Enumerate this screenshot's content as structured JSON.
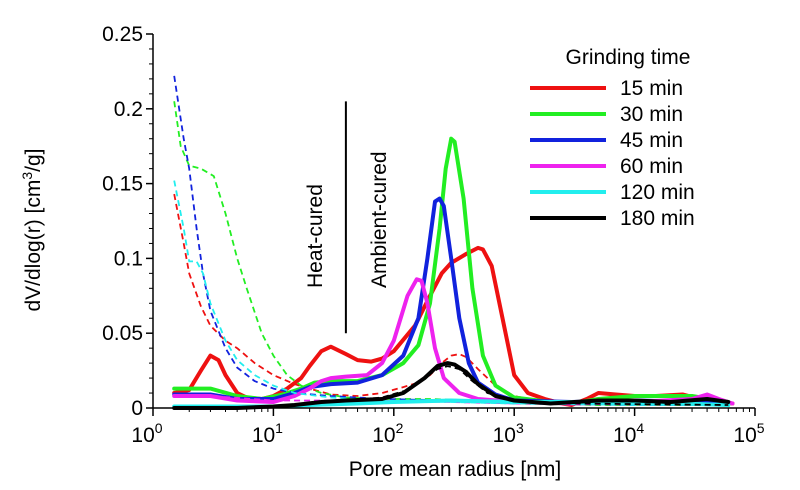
{
  "chart_data": {
    "type": "line",
    "xscale": "log",
    "xlim": [
      1,
      100000
    ],
    "ylim": [
      0,
      0.25
    ],
    "xticks": [
      {
        "value": 1,
        "base": "10",
        "exp": "0"
      },
      {
        "value": 10,
        "base": "10",
        "exp": "1"
      },
      {
        "value": 100,
        "base": "10",
        "exp": "2"
      },
      {
        "value": 1000,
        "base": "10",
        "exp": "3"
      },
      {
        "value": 10000,
        "base": "10",
        "exp": "4"
      },
      {
        "value": 100000,
        "base": "10",
        "exp": "5"
      }
    ],
    "yticks": [
      {
        "value": 0,
        "label": "0"
      },
      {
        "value": 0.05,
        "label": "0.05"
      },
      {
        "value": 0.1,
        "label": "0.1"
      },
      {
        "value": 0.15,
        "label": "0.15"
      },
      {
        "value": 0.2,
        "label": "0.2"
      },
      {
        "value": 0.25,
        "label": "0.25"
      }
    ],
    "xlabel": "Pore mean radius  [nm]",
    "ylabel_main": "dV/dlog(r) [cm",
    "ylabel_sup": "3",
    "ylabel_tail": "/g]",
    "legend": {
      "title": "Grinding time",
      "position": "top-right"
    },
    "annotations": {
      "heat_cured": "Heat-cured",
      "ambient_cured": "Ambient-cured",
      "divider_x": 40,
      "divider_y": [
        0.05,
        0.205
      ]
    },
    "series": [
      {
        "name": "15 min",
        "color": "#ee1111",
        "solid": [
          [
            1.5,
            0.01
          ],
          [
            2,
            0.012
          ],
          [
            2.5,
            0.025
          ],
          [
            3,
            0.035
          ],
          [
            3.5,
            0.032
          ],
          [
            4,
            0.022
          ],
          [
            5,
            0.01
          ],
          [
            6,
            0.007
          ],
          [
            8,
            0.006
          ],
          [
            10,
            0.008
          ],
          [
            13,
            0.013
          ],
          [
            17,
            0.02
          ],
          [
            20,
            0.028
          ],
          [
            25,
            0.038
          ],
          [
            30,
            0.041
          ],
          [
            40,
            0.036
          ],
          [
            50,
            0.032
          ],
          [
            65,
            0.031
          ],
          [
            80,
            0.033
          ],
          [
            100,
            0.038
          ],
          [
            150,
            0.055
          ],
          [
            200,
            0.075
          ],
          [
            250,
            0.09
          ],
          [
            300,
            0.097
          ],
          [
            400,
            0.103
          ],
          [
            500,
            0.107
          ],
          [
            550,
            0.106
          ],
          [
            650,
            0.095
          ],
          [
            800,
            0.06
          ],
          [
            1000,
            0.022
          ],
          [
            1300,
            0.01
          ],
          [
            1800,
            0.006
          ],
          [
            2500,
            0.003
          ],
          [
            3000,
            0.002
          ],
          [
            4000,
            0.006
          ],
          [
            5000,
            0.01
          ],
          [
            7000,
            0.009
          ],
          [
            10000,
            0.008
          ],
          [
            15000,
            0.008
          ],
          [
            25000,
            0.009
          ],
          [
            35000,
            0.006
          ],
          [
            50000,
            0.004
          ],
          [
            65000,
            0.003
          ]
        ],
        "dashed": [
          [
            1.5,
            0.143
          ],
          [
            1.8,
            0.11
          ],
          [
            2,
            0.09
          ],
          [
            2.5,
            0.068
          ],
          [
            3,
            0.055
          ],
          [
            4,
            0.045
          ],
          [
            5,
            0.04
          ],
          [
            7,
            0.03
          ],
          [
            10,
            0.022
          ],
          [
            15,
            0.016
          ],
          [
            20,
            0.013
          ],
          [
            30,
            0.009
          ],
          [
            50,
            0.008
          ],
          [
            80,
            0.01
          ],
          [
            120,
            0.014
          ],
          [
            160,
            0.017
          ],
          [
            200,
            0.022
          ],
          [
            250,
            0.03
          ],
          [
            300,
            0.035
          ],
          [
            350,
            0.036
          ],
          [
            400,
            0.034
          ],
          [
            500,
            0.026
          ],
          [
            700,
            0.015
          ],
          [
            1000,
            0.008
          ],
          [
            2000,
            0.003
          ],
          [
            5000,
            0.002
          ],
          [
            20000,
            0.002
          ],
          [
            60000,
            0.002
          ]
        ]
      },
      {
        "name": "30 min",
        "color": "#22ee22",
        "solid": [
          [
            1.5,
            0.013
          ],
          [
            3,
            0.013
          ],
          [
            5,
            0.008
          ],
          [
            8,
            0.006
          ],
          [
            12,
            0.009
          ],
          [
            17,
            0.013
          ],
          [
            22,
            0.017
          ],
          [
            30,
            0.018
          ],
          [
            50,
            0.018
          ],
          [
            80,
            0.022
          ],
          [
            120,
            0.03
          ],
          [
            160,
            0.042
          ],
          [
            200,
            0.07
          ],
          [
            240,
            0.12
          ],
          [
            270,
            0.16
          ],
          [
            300,
            0.18
          ],
          [
            320,
            0.178
          ],
          [
            380,
            0.14
          ],
          [
            450,
            0.08
          ],
          [
            550,
            0.035
          ],
          [
            700,
            0.015
          ],
          [
            1000,
            0.007
          ],
          [
            2000,
            0.004
          ],
          [
            3000,
            0.003
          ],
          [
            5000,
            0.006
          ],
          [
            10000,
            0.008
          ],
          [
            30000,
            0.008
          ],
          [
            60000,
            0.004
          ]
        ],
        "dashed": [
          [
            1.5,
            0.205
          ],
          [
            1.7,
            0.175
          ],
          [
            2,
            0.162
          ],
          [
            2.5,
            0.16
          ],
          [
            3.2,
            0.155
          ],
          [
            4,
            0.13
          ],
          [
            5,
            0.1
          ],
          [
            6,
            0.08
          ],
          [
            8,
            0.05
          ],
          [
            10,
            0.035
          ],
          [
            13,
            0.022
          ],
          [
            17,
            0.015
          ],
          [
            25,
            0.01
          ],
          [
            40,
            0.007
          ],
          [
            80,
            0.006
          ],
          [
            200,
            0.006
          ],
          [
            500,
            0.005
          ],
          [
            1000,
            0.003
          ],
          [
            5000,
            0.002
          ],
          [
            60000,
            0.002
          ]
        ]
      },
      {
        "name": "45 min",
        "color": "#1122dd",
        "solid": [
          [
            1.5,
            0.009
          ],
          [
            3,
            0.009
          ],
          [
            5,
            0.006
          ],
          [
            10,
            0.006
          ],
          [
            15,
            0.01
          ],
          [
            20,
            0.014
          ],
          [
            30,
            0.016
          ],
          [
            50,
            0.017
          ],
          [
            80,
            0.022
          ],
          [
            120,
            0.035
          ],
          [
            160,
            0.06
          ],
          [
            190,
            0.1
          ],
          [
            220,
            0.138
          ],
          [
            240,
            0.14
          ],
          [
            260,
            0.135
          ],
          [
            300,
            0.1
          ],
          [
            350,
            0.06
          ],
          [
            420,
            0.03
          ],
          [
            500,
            0.017
          ],
          [
            700,
            0.009
          ],
          [
            1000,
            0.005
          ],
          [
            3000,
            0.004
          ],
          [
            10000,
            0.005
          ],
          [
            40000,
            0.004
          ],
          [
            60000,
            0.003
          ]
        ],
        "dashed": [
          [
            1.5,
            0.222
          ],
          [
            1.8,
            0.18
          ],
          [
            2,
            0.16
          ],
          [
            2.3,
            0.12
          ],
          [
            2.6,
            0.09
          ],
          [
            3,
            0.065
          ],
          [
            4,
            0.04
          ],
          [
            5,
            0.027
          ],
          [
            7,
            0.018
          ],
          [
            10,
            0.013
          ],
          [
            15,
            0.01
          ],
          [
            30,
            0.008
          ],
          [
            80,
            0.006
          ],
          [
            300,
            0.005
          ],
          [
            1000,
            0.003
          ],
          [
            10000,
            0.002
          ],
          [
            60000,
            0.002
          ]
        ]
      },
      {
        "name": "60 min",
        "color": "#ee22ee",
        "solid": [
          [
            1.5,
            0.008
          ],
          [
            3,
            0.008
          ],
          [
            5,
            0.005
          ],
          [
            10,
            0.004
          ],
          [
            15,
            0.008
          ],
          [
            20,
            0.013
          ],
          [
            25,
            0.018
          ],
          [
            30,
            0.02
          ],
          [
            40,
            0.021
          ],
          [
            60,
            0.022
          ],
          [
            80,
            0.03
          ],
          [
            100,
            0.045
          ],
          [
            130,
            0.075
          ],
          [
            155,
            0.086
          ],
          [
            170,
            0.085
          ],
          [
            190,
            0.07
          ],
          [
            220,
            0.04
          ],
          [
            260,
            0.02
          ],
          [
            350,
            0.01
          ],
          [
            500,
            0.006
          ],
          [
            1000,
            0.004
          ],
          [
            3000,
            0.003
          ],
          [
            10000,
            0.004
          ],
          [
            30000,
            0.006
          ],
          [
            40000,
            0.009
          ],
          [
            50000,
            0.006
          ],
          [
            65000,
            0.003
          ]
        ],
        "dashed": [
          [
            1.5,
            0.008
          ],
          [
            3,
            0.008
          ],
          [
            10,
            0.005
          ],
          [
            50,
            0.005
          ],
          [
            300,
            0.004
          ],
          [
            1000,
            0.003
          ],
          [
            60000,
            0.002
          ]
        ]
      },
      {
        "name": "120 min",
        "color": "#22eeee",
        "solid": [
          [
            1.5,
            0.001
          ],
          [
            10,
            0.001
          ],
          [
            20,
            0.002
          ],
          [
            50,
            0.003
          ],
          [
            100,
            0.004
          ],
          [
            300,
            0.005
          ],
          [
            1000,
            0.004
          ],
          [
            10000,
            0.004
          ],
          [
            60000,
            0.002
          ]
        ],
        "dashed": [
          [
            1.5,
            0.152
          ],
          [
            1.8,
            0.12
          ],
          [
            2,
            0.098
          ],
          [
            2.3,
            0.098
          ],
          [
            2.6,
            0.09
          ],
          [
            3,
            0.07
          ],
          [
            4,
            0.045
          ],
          [
            5,
            0.032
          ],
          [
            7,
            0.022
          ],
          [
            10,
            0.015
          ],
          [
            15,
            0.01
          ],
          [
            30,
            0.007
          ],
          [
            80,
            0.005
          ],
          [
            300,
            0.004
          ],
          [
            1000,
            0.003
          ],
          [
            10000,
            0.002
          ],
          [
            60000,
            0.002
          ]
        ]
      },
      {
        "name": "180 min",
        "color": "#000000",
        "solid": [
          [
            1.5,
            0.0
          ],
          [
            5,
            0.0
          ],
          [
            10,
            0.001
          ],
          [
            15,
            0.002
          ],
          [
            25,
            0.004
          ],
          [
            40,
            0.005
          ],
          [
            80,
            0.006
          ],
          [
            120,
            0.01
          ],
          [
            180,
            0.02
          ],
          [
            230,
            0.028
          ],
          [
            280,
            0.03
          ],
          [
            320,
            0.029
          ],
          [
            400,
            0.024
          ],
          [
            500,
            0.016
          ],
          [
            700,
            0.008
          ],
          [
            1000,
            0.005
          ],
          [
            2000,
            0.003
          ],
          [
            5000,
            0.005
          ],
          [
            10000,
            0.005
          ],
          [
            20000,
            0.004
          ],
          [
            40000,
            0.006
          ],
          [
            60000,
            0.004
          ]
        ],
        "dashed": [
          [
            10,
            0.001
          ],
          [
            30,
            0.004
          ],
          [
            80,
            0.007
          ],
          [
            130,
            0.012
          ],
          [
            180,
            0.02
          ],
          [
            230,
            0.026
          ],
          [
            280,
            0.028
          ],
          [
            350,
            0.026
          ],
          [
            450,
            0.018
          ],
          [
            600,
            0.01
          ],
          [
            1000,
            0.005
          ],
          [
            3000,
            0.003
          ],
          [
            60000,
            0.002
          ]
        ]
      }
    ]
  }
}
